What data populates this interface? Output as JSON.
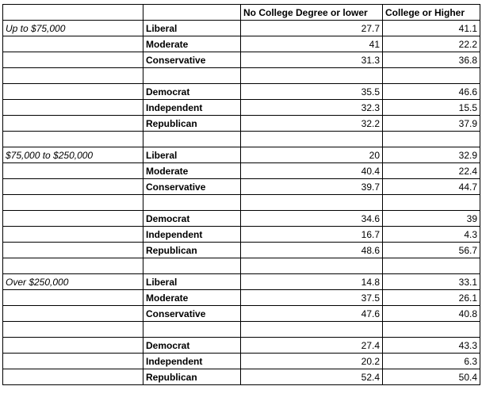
{
  "header": [
    "",
    "",
    "No College Degree or lower",
    "College or Higher"
  ],
  "rows": [
    [
      "Up to $75,000",
      "Liberal",
      "27.7",
      "41.1"
    ],
    [
      "",
      "Moderate",
      "41",
      "22.2"
    ],
    [
      "",
      "Conservative",
      "31.3",
      "36.8"
    ],
    [
      "",
      "",
      "",
      ""
    ],
    [
      "",
      "Democrat",
      "35.5",
      "46.6"
    ],
    [
      "",
      "Independent",
      "32.3",
      "15.5"
    ],
    [
      "",
      "Republican",
      "32.2",
      "37.9"
    ],
    [
      "",
      "",
      "",
      ""
    ],
    [
      "$75,000 to $250,000",
      "Liberal",
      "20",
      "32.9"
    ],
    [
      "",
      "Moderate",
      "40.4",
      "22.4"
    ],
    [
      "",
      "Conservative",
      "39.7",
      "44.7"
    ],
    [
      "",
      "",
      "",
      ""
    ],
    [
      "",
      "Democrat",
      "34.6",
      "39"
    ],
    [
      "",
      "Independent",
      "16.7",
      "4.3"
    ],
    [
      "",
      "Republican",
      "48.6",
      "56.7"
    ],
    [
      "",
      "",
      "",
      ""
    ],
    [
      "Over $250,000",
      "Liberal",
      "14.8",
      "33.1"
    ],
    [
      "",
      "Moderate",
      "37.5",
      "26.1"
    ],
    [
      "",
      "Conservative",
      "47.6",
      "40.8"
    ],
    [
      "",
      "",
      "",
      ""
    ],
    [
      "",
      "Democrat",
      "27.4",
      "43.3"
    ],
    [
      "",
      "Independent",
      "20.2",
      "6.3"
    ],
    [
      "",
      "Republican",
      "52.4",
      "50.4"
    ]
  ]
}
